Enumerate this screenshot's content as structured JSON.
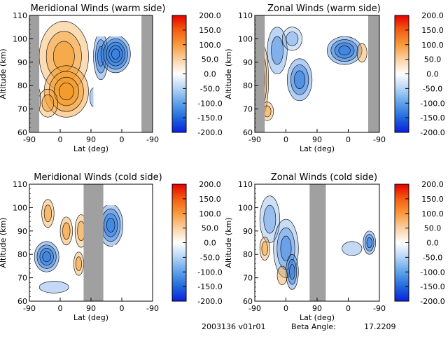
{
  "chart_data": [
    {
      "type": "heatmap",
      "title": "Meridional Winds (warm side)",
      "xlabel": "Lat (deg)",
      "ylabel": "Altitude (km)",
      "xticks": [
        "-90",
        "0",
        "90",
        "0",
        "-90"
      ],
      "yticks": [
        "60",
        "70",
        "80",
        "90",
        "100",
        "110"
      ],
      "ylim": [
        60,
        110
      ],
      "colorbar": {
        "min": -200,
        "max": 200,
        "ticks": [
          "200.0",
          "150.0",
          "100.0",
          "50.0",
          "0.0",
          "-50.0",
          "-100.0",
          "-150.0",
          "-200.0"
        ]
      }
    },
    {
      "type": "heatmap",
      "title": "Zonal Winds (warm side)",
      "xlabel": "Lat (deg)",
      "ylabel": "Altitude (km)",
      "xticks": [
        "-90",
        "0",
        "90",
        "0",
        "-90"
      ],
      "yticks": [
        "60",
        "70",
        "80",
        "90",
        "100",
        "110"
      ],
      "ylim": [
        60,
        110
      ],
      "colorbar": {
        "min": -200,
        "max": 200,
        "ticks": [
          "200.0",
          "150.0",
          "100.0",
          "50.0",
          "0.0",
          "-50.0",
          "-100.0",
          "-150.0",
          "-200.0"
        ]
      }
    },
    {
      "type": "heatmap",
      "title": "Meridional Winds (cold side)",
      "xlabel": "Lat (deg)",
      "ylabel": "Altitude (km)",
      "xticks": [
        "-90",
        "0",
        "90",
        "0",
        "-90"
      ],
      "yticks": [
        "60",
        "70",
        "80",
        "90",
        "100",
        "110"
      ],
      "ylim": [
        60,
        110
      ],
      "colorbar": {
        "min": -200,
        "max": 200,
        "ticks": [
          "200.0",
          "150.0",
          "100.0",
          "50.0",
          "0.0",
          "-50.0",
          "-100.0",
          "-150.0",
          "-200.0"
        ]
      }
    },
    {
      "type": "heatmap",
      "title": "Zonal Winds (cold side)",
      "xlabel": "Lat (deg)",
      "ylabel": "Altitude (km)",
      "xticks": [
        "-90",
        "0",
        "90",
        "0",
        "-90"
      ],
      "yticks": [
        "60",
        "70",
        "80",
        "90",
        "100",
        "110"
      ],
      "ylim": [
        60,
        110
      ],
      "colorbar": {
        "min": -200,
        "max": 200,
        "ticks": [
          "200.0",
          "150.0",
          "100.0",
          "50.0",
          "0.0",
          "-50.0",
          "-100.0",
          "-150.0",
          "-200.0"
        ]
      }
    }
  ],
  "footer": {
    "date_version": "2003136 v01r01",
    "beta_label": "Beta Angle:",
    "beta_value": "17.2209"
  },
  "colors": {
    "positive": "#f39a2a",
    "negative": "#3a82e0",
    "no_data": "#a0a0a0",
    "contour": "#000000"
  }
}
